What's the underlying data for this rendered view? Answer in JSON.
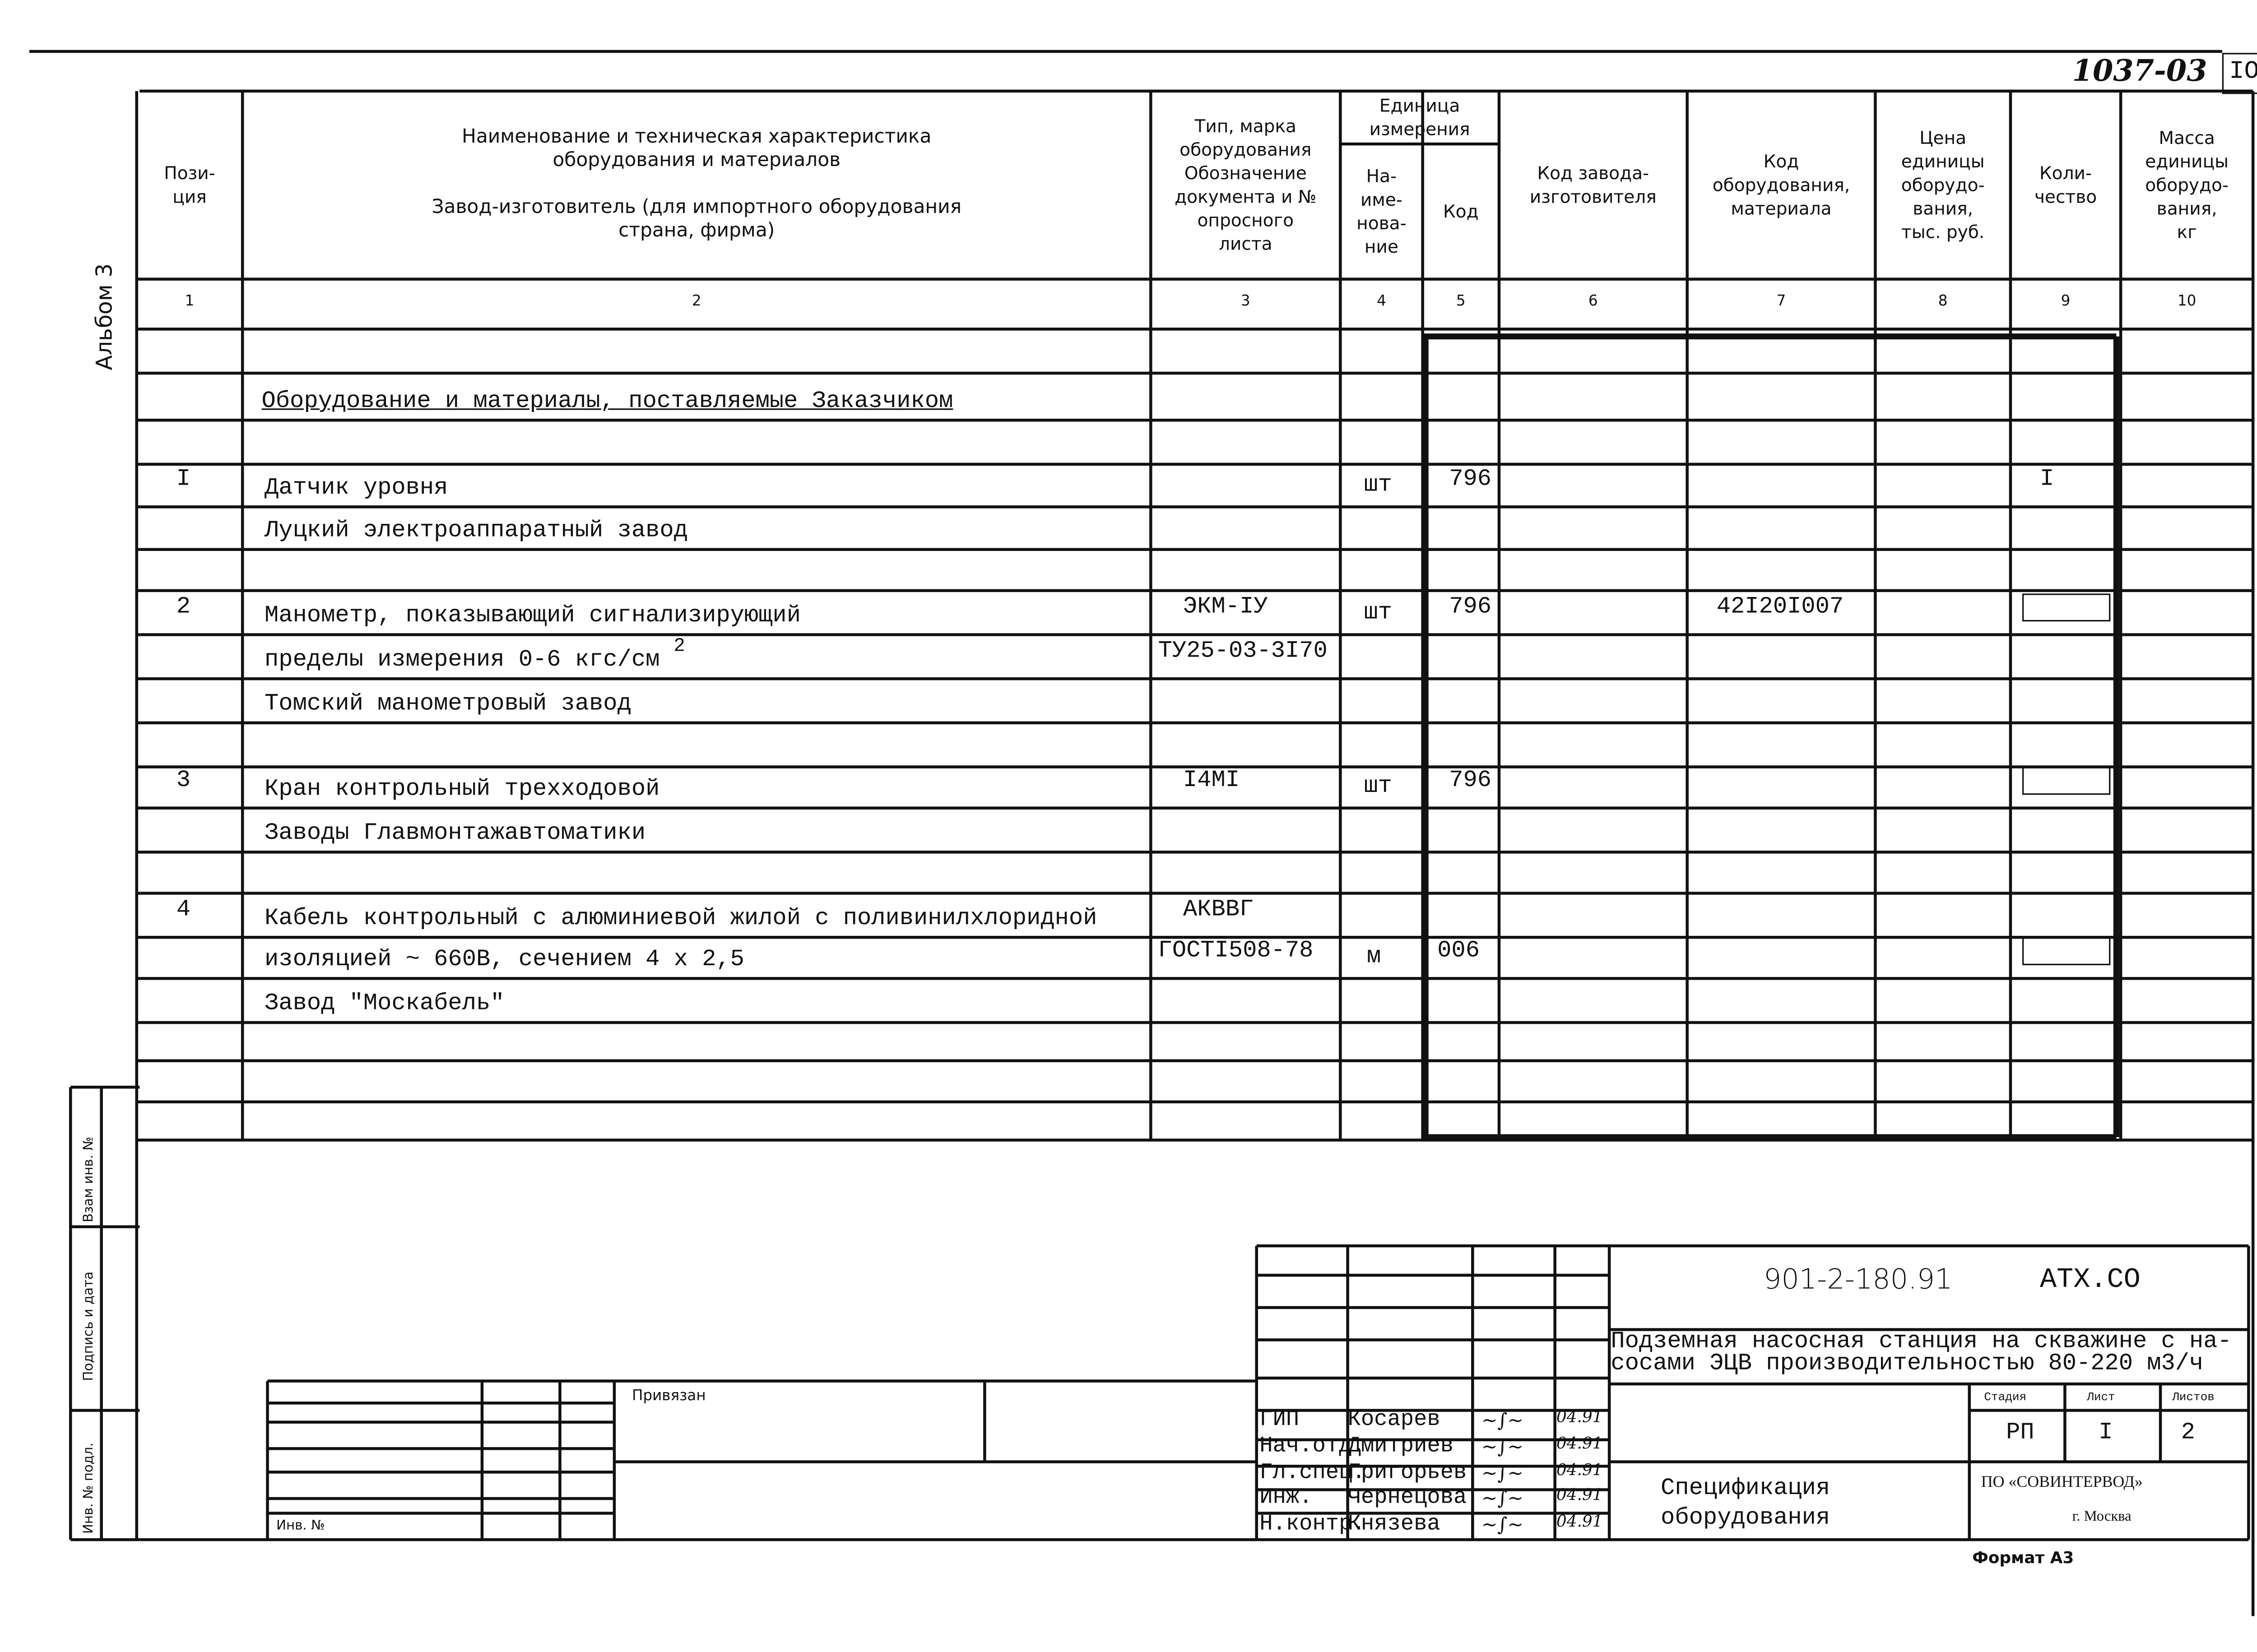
{
  "sheet": {
    "handwritten_code": "1037-03",
    "sheet_number": "IO",
    "album": "Альбом 3",
    "format": "Формат А3"
  },
  "header": {
    "unit_group": "Единица\nизмерения",
    "columns": [
      "Пози-\nция",
      "Наименование и техническая характеристика\nоборудования и материалов\n\nЗавод-изготовитель (для импортного оборудования\nстрана, фирма)",
      "Тип, марка\nоборудования\nОбозначение\nдокумента и №\nопросного\nлиста",
      "На-\nиме-\nнова-\nние",
      "Код",
      "Код завода-\nизготовителя",
      "Код\nоборудования,\nматериала",
      "Цена\nединицы\nоборудо-\nвания,\nтыс. руб.",
      "Коли-\nчество",
      "Масса\nединицы\nоборудо-\nвания,\nкг"
    ],
    "numbers": [
      "1",
      "2",
      "3",
      "4",
      "5",
      "6",
      "7",
      "8",
      "9",
      "10"
    ]
  },
  "rows": [
    {},
    {
      "section": "Оборудование и материалы, поставляемые Заказчиком"
    },
    {},
    {
      "pos": "I",
      "name": "Датчик уровня",
      "unit": "шт",
      "code": "796",
      "qty": "I"
    },
    {
      "name": "Луцкий электроаппаратный завод"
    },
    {},
    {
      "pos": "2",
      "name": "Манометр, показывающий сигнализирующий",
      "type": "ЭКМ-IУ",
      "unit": "шт",
      "code": "796",
      "equip_code": "42I20I007",
      "qty_box": true
    },
    {
      "name": "пределы  измерения 0-6 кгс/см",
      "name_sup": "2",
      "type": "ТУ25-03-3I70"
    },
    {
      "name": "Томский манометровый завод"
    },
    {},
    {
      "pos": "3",
      "name": "Кран контрольный трехходовой",
      "type": "I4MI",
      "unit": "шт",
      "code": "796",
      "qty_box": true
    },
    {
      "name": "Заводы Главмонтажавтоматики"
    },
    {},
    {
      "pos": "4",
      "name": "Кабель контрольный с алюминиевой жилой с поливинилхлоридной",
      "type": "АКВВГ"
    },
    {
      "name": "изоляцией ~ 660В, сечением 4 х 2,5",
      "type": "ГОСТI508-78",
      "unit": "м",
      "code": "006",
      "qty_box": true
    },
    {
      "name": "Завод \"Москабель\""
    },
    {},
    {},
    {}
  ],
  "side_strip": {
    "replaced_inv": "Взам инв. №",
    "signature_date": "Подпись и дата",
    "orig_inv": "Инв. № подл."
  },
  "binding_block": {
    "label": "Привязан",
    "inv_label": "Инв. №"
  },
  "title_block": {
    "designation": "901-2-180.91",
    "mark": "АТХ.СО",
    "project_title": "Подземная насосная станция на скважине с на-\nсосами ЭЦВ производительностью 80-220 м3/ч",
    "document_title": "Спецификация\nоборудования",
    "stage_label": "Стадия",
    "sheet_label": "Лист",
    "sheets_label": "Листов",
    "stage": "РП",
    "sheet": "I",
    "sheets": "2",
    "organization": "ПО «СОВИНТЕРВОД»",
    "city": "г. Москва",
    "signatures": [
      {
        "role": "ГИП",
        "name": "Косарев",
        "date": "04.91"
      },
      {
        "role": "Нач.отд.",
        "name": "Дмитриев",
        "date": "04.91"
      },
      {
        "role": "Гл.спец.",
        "name": "Григорьев",
        "date": "04.91"
      },
      {
        "role": "Инж.",
        "name": "Чернецова",
        "date": "04.91"
      },
      {
        "role": "Н.контр.",
        "name": "Князева",
        "date": "04.91"
      }
    ]
  }
}
